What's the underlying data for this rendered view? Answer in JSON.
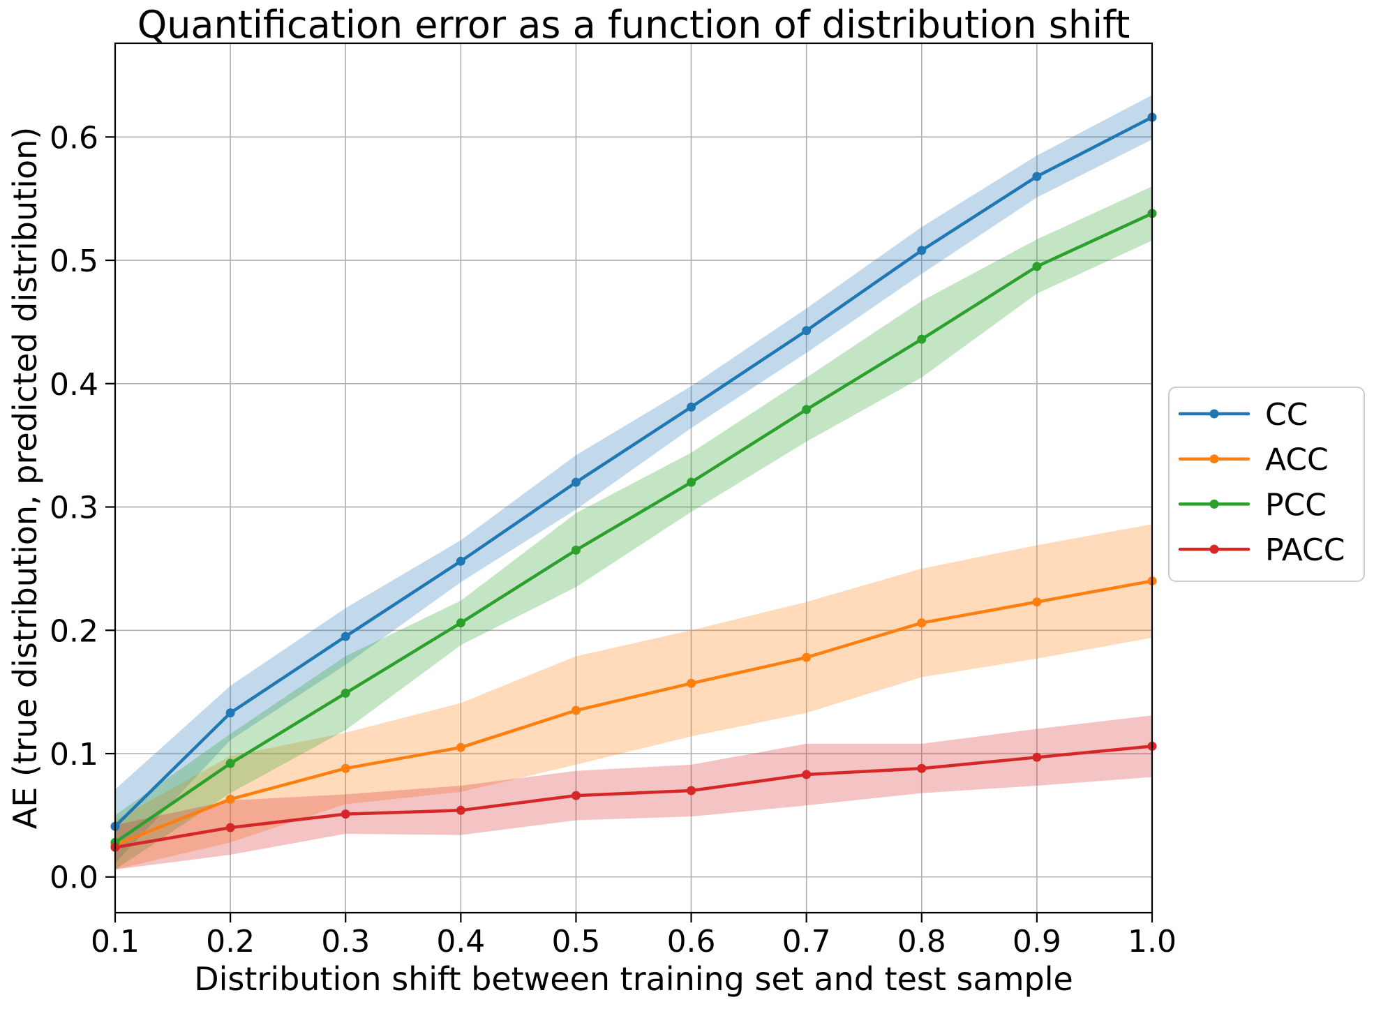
{
  "figure": {
    "background": "#ffffff"
  },
  "chart_data": {
    "type": "line",
    "title": "Quantification error as a function of distribution shift",
    "xlabel": "Distribution shift between training set and test sample",
    "ylabel": "AE (true distribution, predicted distribution)",
    "grid": true,
    "legend_position": "right-outside",
    "xlim": [
      0.1,
      1.0
    ],
    "ylim": [
      -0.029,
      0.676
    ],
    "x": [
      0.1,
      0.2,
      0.3,
      0.4,
      0.5,
      0.6,
      0.7,
      0.8,
      0.9,
      1.0
    ],
    "xtick_values": [
      0.1,
      0.2,
      0.3,
      0.4,
      0.5,
      0.6,
      0.7,
      0.8,
      0.9,
      1.0
    ],
    "xtick_labels": [
      "0.1",
      "0.2",
      "0.3",
      "0.4",
      "0.5",
      "0.6",
      "0.7",
      "0.8",
      "0.9",
      "1.0"
    ],
    "ytick_values": [
      0.0,
      0.1,
      0.2,
      0.3,
      0.4,
      0.5,
      0.6
    ],
    "ytick_labels": [
      "0.0",
      "0.1",
      "0.2",
      "0.3",
      "0.4",
      "0.5",
      "0.6"
    ],
    "band_opacity": 0.28,
    "grid_color": "#b0b0b0",
    "series": [
      {
        "name": "CC",
        "color": "#1f77b4",
        "values": [
          0.041,
          0.133,
          0.195,
          0.256,
          0.32,
          0.381,
          0.443,
          0.508,
          0.568,
          0.616
        ],
        "band_low": [
          0.011,
          0.111,
          0.172,
          0.239,
          0.298,
          0.364,
          0.425,
          0.489,
          0.551,
          0.598
        ],
        "band_high": [
          0.071,
          0.155,
          0.218,
          0.273,
          0.342,
          0.398,
          0.461,
          0.527,
          0.585,
          0.634
        ]
      },
      {
        "name": "ACC",
        "color": "#ff7f0e",
        "values": [
          0.026,
          0.063,
          0.088,
          0.105,
          0.135,
          0.157,
          0.178,
          0.206,
          0.223,
          0.24
        ],
        "band_low": [
          0.006,
          0.028,
          0.059,
          0.069,
          0.091,
          0.114,
          0.133,
          0.162,
          0.177,
          0.194
        ],
        "band_high": [
          0.046,
          0.098,
          0.117,
          0.141,
          0.179,
          0.2,
          0.223,
          0.25,
          0.269,
          0.286
        ]
      },
      {
        "name": "PCC",
        "color": "#2ca02c",
        "values": [
          0.028,
          0.092,
          0.149,
          0.206,
          0.265,
          0.32,
          0.379,
          0.436,
          0.495,
          0.538
        ],
        "band_low": [
          0.006,
          0.068,
          0.119,
          0.188,
          0.235,
          0.296,
          0.353,
          0.405,
          0.473,
          0.516
        ],
        "band_high": [
          0.05,
          0.116,
          0.179,
          0.224,
          0.295,
          0.344,
          0.405,
          0.467,
          0.517,
          0.56
        ]
      },
      {
        "name": "PACC",
        "color": "#d62728",
        "values": [
          0.024,
          0.04,
          0.051,
          0.054,
          0.066,
          0.07,
          0.083,
          0.088,
          0.097,
          0.106
        ],
        "band_low": [
          0.006,
          0.018,
          0.035,
          0.034,
          0.046,
          0.049,
          0.058,
          0.068,
          0.074,
          0.081
        ],
        "band_high": [
          0.042,
          0.062,
          0.067,
          0.074,
          0.086,
          0.091,
          0.108,
          0.108,
          0.12,
          0.131
        ]
      }
    ]
  }
}
